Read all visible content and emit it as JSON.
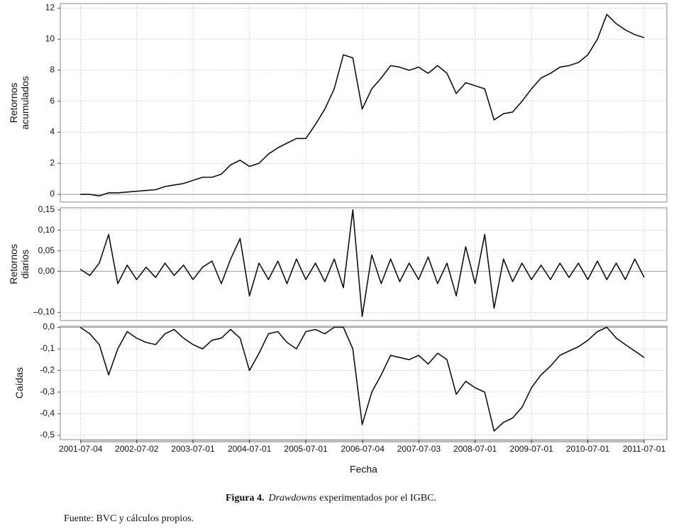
{
  "chart_data": [
    {
      "type": "line",
      "ylabel": [
        "Retornos",
        "acumulados"
      ],
      "color": "#111111",
      "x": [
        "2001-07-01",
        "2001-09-01",
        "2001-11-01",
        "2002-01-01",
        "2002-03-01",
        "2002-05-01",
        "2002-07-01",
        "2002-09-01",
        "2002-11-01",
        "2003-01-01",
        "2003-03-01",
        "2003-05-01",
        "2003-07-01",
        "2003-09-01",
        "2003-11-01",
        "2004-01-01",
        "2004-03-01",
        "2004-05-01",
        "2004-07-01",
        "2004-09-01",
        "2004-11-01",
        "2005-01-01",
        "2005-03-01",
        "2005-05-01",
        "2005-07-01",
        "2005-09-01",
        "2005-11-01",
        "2006-01-01",
        "2006-03-01",
        "2006-05-01",
        "2006-07-01",
        "2006-09-01",
        "2006-11-01",
        "2007-01-01",
        "2007-03-01",
        "2007-05-01",
        "2007-07-01",
        "2007-09-01",
        "2007-11-01",
        "2008-01-01",
        "2008-03-01",
        "2008-05-01",
        "2008-07-01",
        "2008-09-01",
        "2008-11-01",
        "2009-01-01",
        "2009-03-01",
        "2009-05-01",
        "2009-07-01",
        "2009-09-01",
        "2009-11-01",
        "2010-01-01",
        "2010-03-01",
        "2010-05-01",
        "2010-07-01",
        "2010-09-01",
        "2010-11-01",
        "2011-01-01",
        "2011-03-01",
        "2011-05-01",
        "2011-07-01"
      ],
      "values": [
        0,
        0,
        -0.1,
        0.1,
        0.1,
        0.15,
        0.2,
        0.25,
        0.3,
        0.5,
        0.6,
        0.7,
        0.9,
        1.1,
        1.1,
        1.3,
        1.9,
        2.2,
        1.8,
        2.0,
        2.6,
        3.0,
        3.3,
        3.6,
        3.6,
        4.5,
        5.5,
        6.8,
        9.0,
        8.8,
        5.5,
        6.8,
        7.5,
        8.3,
        8.2,
        8.0,
        8.2,
        7.8,
        8.3,
        7.8,
        6.5,
        7.2,
        7.0,
        6.8,
        4.8,
        5.2,
        5.3,
        6.0,
        6.8,
        7.5,
        7.8,
        8.2,
        8.3,
        8.5,
        9.0,
        10.0,
        11.6,
        11.0,
        10.6,
        10.3,
        10.1
      ],
      "xlim": [
        "2001-02-22",
        "2011-11-25"
      ],
      "ylim": [
        -0.5,
        12.3
      ],
      "yticks": [
        0,
        2,
        4,
        6,
        8,
        10,
        12
      ],
      "grid": true
    },
    {
      "type": "line",
      "ylabel": [
        "Retornos",
        "diarios"
      ],
      "color": "#111111",
      "x": [
        "2001-07-01",
        "2001-09-01",
        "2001-11-01",
        "2002-01-01",
        "2002-03-01",
        "2002-05-01",
        "2002-07-01",
        "2002-09-01",
        "2002-11-01",
        "2003-01-01",
        "2003-03-01",
        "2003-05-01",
        "2003-07-01",
        "2003-09-01",
        "2003-11-01",
        "2004-01-01",
        "2004-03-01",
        "2004-05-01",
        "2004-07-01",
        "2004-09-01",
        "2004-11-01",
        "2005-01-01",
        "2005-03-01",
        "2005-05-01",
        "2005-07-01",
        "2005-09-01",
        "2005-11-01",
        "2006-01-01",
        "2006-03-01",
        "2006-05-01",
        "2006-07-01",
        "2006-09-01",
        "2006-11-01",
        "2007-01-01",
        "2007-03-01",
        "2007-05-01",
        "2007-07-01",
        "2007-09-01",
        "2007-11-01",
        "2008-01-01",
        "2008-03-01",
        "2008-05-01",
        "2008-07-01",
        "2008-09-01",
        "2008-11-01",
        "2009-01-01",
        "2009-03-01",
        "2009-05-01",
        "2009-07-01",
        "2009-09-01",
        "2009-11-01",
        "2010-01-01",
        "2010-03-01",
        "2010-05-01",
        "2010-07-01",
        "2010-09-01",
        "2010-11-01",
        "2011-01-01",
        "2011-03-01",
        "2011-05-01",
        "2011-07-01"
      ],
      "values": [
        0.005,
        -0.01,
        0.02,
        0.09,
        -0.03,
        0.015,
        -0.02,
        0.01,
        -0.015,
        0.02,
        -0.01,
        0.015,
        -0.02,
        0.01,
        0.025,
        -0.03,
        0.03,
        0.08,
        -0.06,
        0.02,
        -0.02,
        0.025,
        -0.03,
        0.03,
        -0.02,
        0.02,
        -0.025,
        0.03,
        -0.04,
        0.15,
        -0.11,
        0.04,
        -0.03,
        0.03,
        -0.025,
        0.02,
        -0.02,
        0.035,
        -0.03,
        0.02,
        -0.06,
        0.06,
        -0.03,
        0.09,
        -0.09,
        0.03,
        -0.025,
        0.02,
        -0.02,
        0.015,
        -0.02,
        0.02,
        -0.015,
        0.02,
        -0.02,
        0.025,
        -0.02,
        0.02,
        -0.02,
        0.03,
        -0.015
      ],
      "xlim": [
        "2001-02-22",
        "2011-11-25"
      ],
      "ylim": [
        -0.12,
        0.155
      ],
      "yticks": [
        {
          "value": -0.1,
          "label": "–0,10"
        },
        {
          "value": 0,
          "label": "0,00"
        },
        {
          "value": 0.05,
          "label": "0,05"
        },
        {
          "value": 0.1,
          "label": "0,10"
        },
        {
          "value": 0.15,
          "label": "0,15"
        }
      ],
      "grid": true
    },
    {
      "type": "line",
      "ylabel": [
        "Caídas"
      ],
      "xlabel": "Fecha",
      "color": "#111111",
      "x": [
        "2001-07-01",
        "2001-09-01",
        "2001-11-01",
        "2002-01-01",
        "2002-03-01",
        "2002-05-01",
        "2002-07-01",
        "2002-09-01",
        "2002-11-01",
        "2003-01-01",
        "2003-03-01",
        "2003-05-01",
        "2003-07-01",
        "2003-09-01",
        "2003-11-01",
        "2004-01-01",
        "2004-03-01",
        "2004-05-01",
        "2004-07-01",
        "2004-09-01",
        "2004-11-01",
        "2005-01-01",
        "2005-03-01",
        "2005-05-01",
        "2005-07-01",
        "2005-09-01",
        "2005-11-01",
        "2006-01-01",
        "2006-03-01",
        "2006-05-01",
        "2006-07-01",
        "2006-09-01",
        "2006-11-01",
        "2007-01-01",
        "2007-03-01",
        "2007-05-01",
        "2007-07-01",
        "2007-09-01",
        "2007-11-01",
        "2008-01-01",
        "2008-03-01",
        "2008-05-01",
        "2008-07-01",
        "2008-09-01",
        "2008-11-01",
        "2009-01-01",
        "2009-03-01",
        "2009-05-01",
        "2009-07-01",
        "2009-09-01",
        "2009-11-01",
        "2010-01-01",
        "2010-03-01",
        "2010-05-01",
        "2010-07-01",
        "2010-09-01",
        "2010-11-01",
        "2011-01-01",
        "2011-03-01",
        "2011-05-01",
        "2011-07-01"
      ],
      "values": [
        0,
        -0.03,
        -0.08,
        -0.22,
        -0.1,
        -0.02,
        -0.05,
        -0.07,
        -0.08,
        -0.03,
        -0.01,
        -0.05,
        -0.08,
        -0.1,
        -0.06,
        -0.05,
        -0.01,
        -0.05,
        -0.2,
        -0.12,
        -0.03,
        -0.02,
        -0.07,
        -0.1,
        -0.02,
        -0.01,
        -0.03,
        0,
        0,
        -0.1,
        -0.45,
        -0.3,
        -0.22,
        -0.13,
        -0.14,
        -0.15,
        -0.13,
        -0.17,
        -0.12,
        -0.15,
        -0.31,
        -0.25,
        -0.28,
        -0.3,
        -0.48,
        -0.44,
        -0.42,
        -0.37,
        -0.28,
        -0.22,
        -0.18,
        -0.13,
        -0.11,
        -0.09,
        -0.06,
        -0.02,
        0,
        -0.05,
        -0.08,
        -0.11,
        -0.14
      ],
      "xlim": [
        "2001-02-22",
        "2011-11-25"
      ],
      "ylim": [
        -0.52,
        0.005
      ],
      "yticks": [
        {
          "value": -0.5,
          "label": "-0,5"
        },
        {
          "value": -0.4,
          "label": "-0,4"
        },
        {
          "value": -0.3,
          "label": "-0,3"
        },
        {
          "value": -0.2,
          "label": "-0,2"
        },
        {
          "value": -0.1,
          "label": "-0,1"
        },
        {
          "value": 0,
          "label": "0,0"
        }
      ],
      "xticks": [
        "2001-07-04",
        "2002-07-02",
        "2003-07-01",
        "2004-07-01",
        "2005-07-01",
        "2006-07-04",
        "2007-07-03",
        "2008-07-01",
        "2009-07-01",
        "2010-07-01",
        "2011-07-01"
      ],
      "grid": true
    }
  ],
  "caption": {
    "label": "Figura 4.",
    "emphasis": "Drawdowns",
    "text": "experimentados por el IGBC."
  },
  "source": "Fuente: BVC y cálculos propios."
}
